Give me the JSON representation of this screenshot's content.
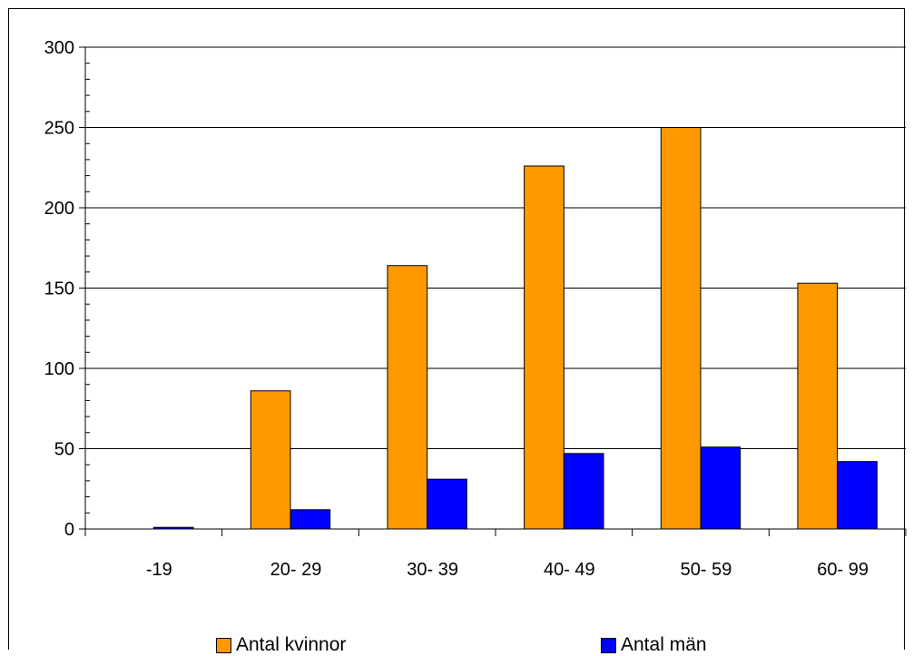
{
  "chart_data": {
    "type": "bar",
    "categories": [
      "-19",
      "20- 29",
      "30- 39",
      "40- 49",
      "50- 59",
      "60- 99"
    ],
    "series": [
      {
        "name": "Antal kvinnor",
        "color": "#FF9900",
        "values": [
          0,
          86,
          164,
          226,
          250,
          153
        ]
      },
      {
        "name": "Antal män",
        "color": "#0000FF",
        "values": [
          1,
          12,
          31,
          47,
          51,
          42
        ]
      }
    ],
    "ylim": [
      0,
      300
    ],
    "yticks": [
      0,
      50,
      100,
      150,
      200,
      250,
      300
    ],
    "grid": true,
    "legend_position": "bottom",
    "title": "",
    "xlabel": "",
    "ylabel": ""
  }
}
